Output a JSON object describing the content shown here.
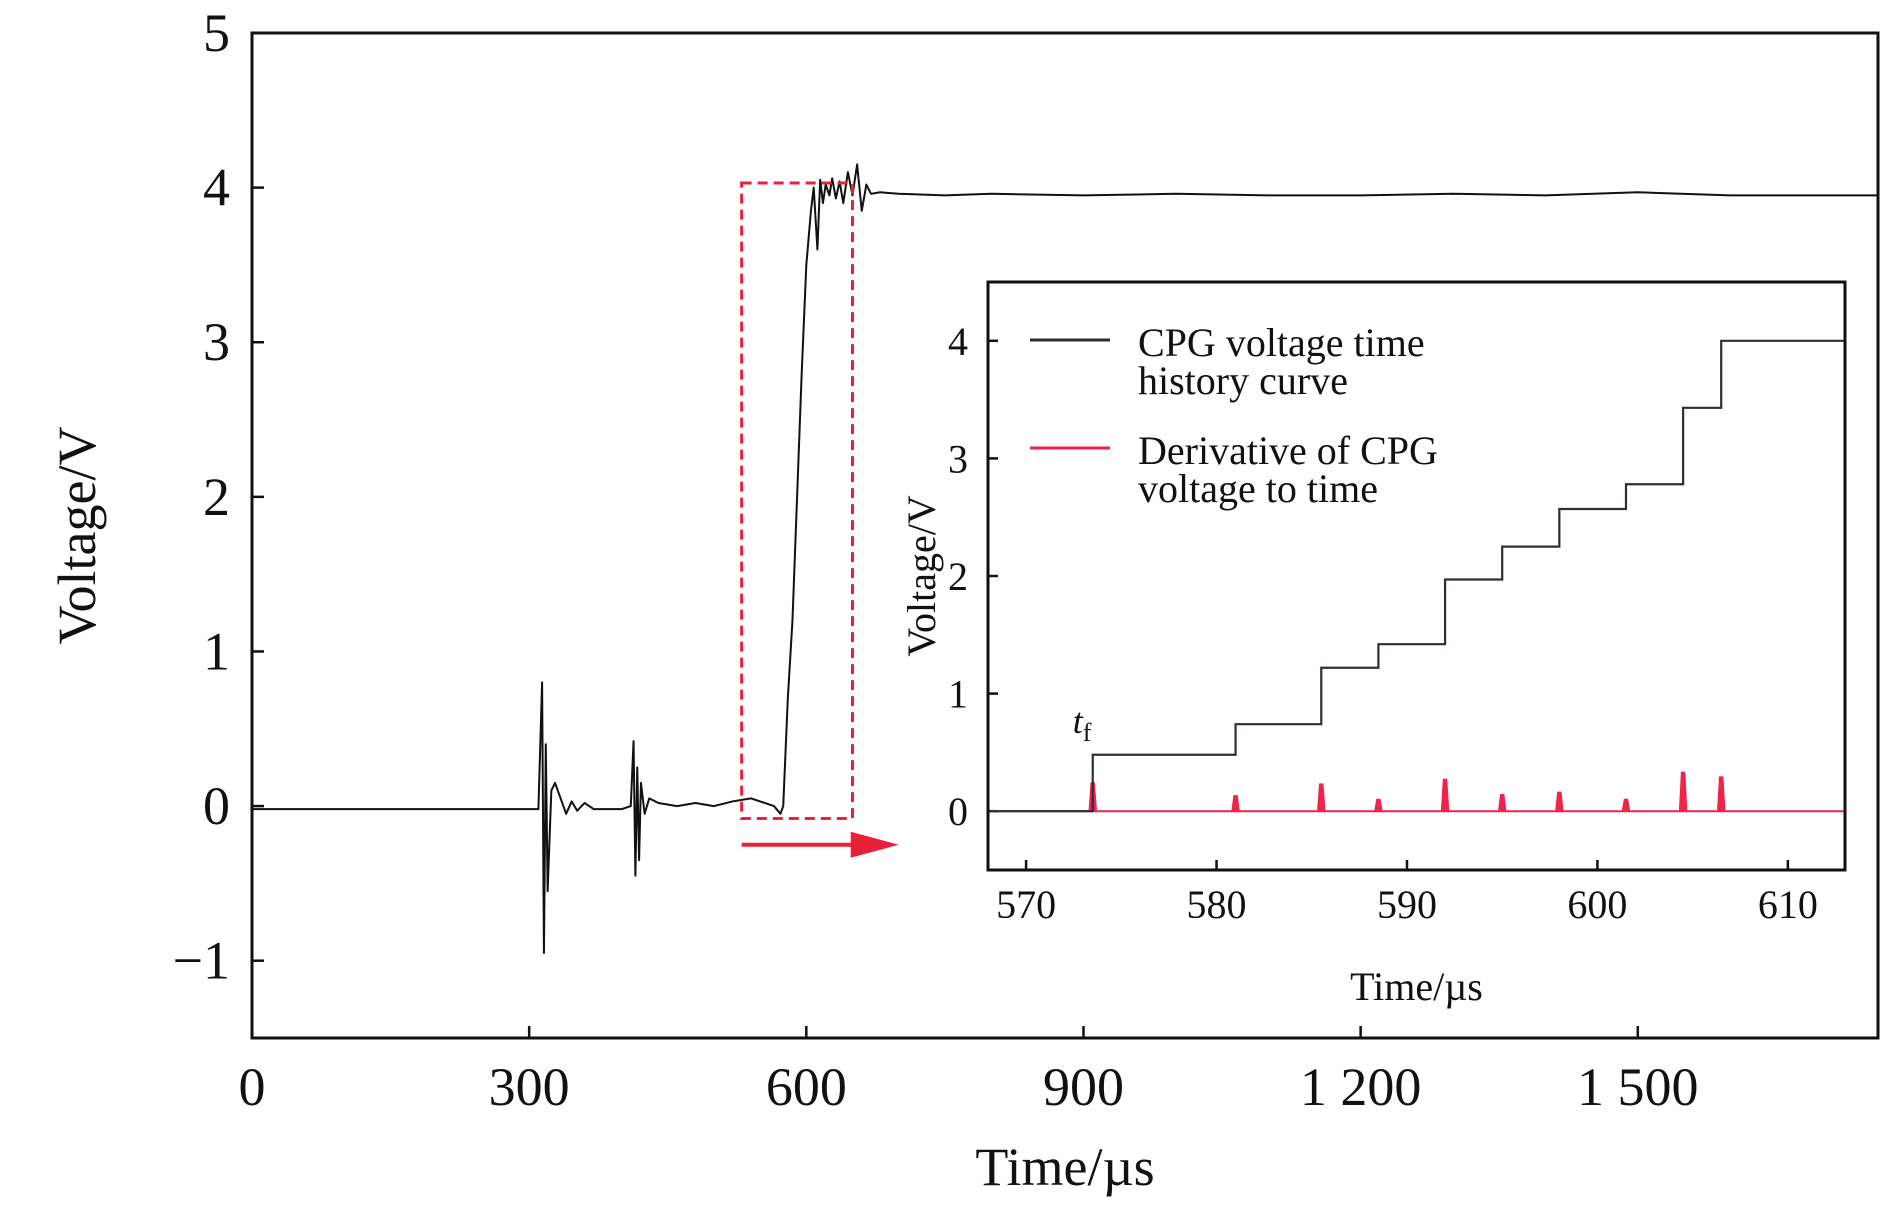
{
  "chart_data": [
    {
      "type": "line",
      "xlabel": "Time/µs",
      "ylabel": "Voltage/V",
      "xlim": [
        0,
        1760
      ],
      "ylim": [
        -1.5,
        5
      ],
      "xticks": [
        0,
        300,
        600,
        900,
        1200,
        1500
      ],
      "xtick_labels": [
        "0",
        "300",
        "600",
        "900",
        "1 200",
        "1 500"
      ],
      "yticks": [
        -1,
        0,
        1,
        2,
        3,
        4,
        5
      ],
      "ytick_labels": [
        "−1",
        "0",
        "1",
        "2",
        "3",
        "4",
        "5"
      ],
      "series": [
        {
          "color": "#111111",
          "x": [
            0,
            100,
            200,
            300,
            310,
            314,
            316,
            318,
            320,
            324,
            328,
            334,
            340,
            346,
            352,
            360,
            370,
            380,
            390,
            400,
            410,
            413,
            415,
            417,
            419,
            421,
            425,
            430,
            440,
            460,
            480,
            500,
            520,
            540,
            555,
            565,
            572,
            575,
            580,
            585,
            590,
            595,
            600,
            605,
            608,
            612,
            615,
            618,
            621,
            625,
            628,
            632,
            636,
            640,
            645,
            650,
            655,
            660,
            665,
            670,
            680,
            700,
            750,
            800,
            900,
            1000,
            1100,
            1200,
            1300,
            1400,
            1500,
            1600,
            1700,
            1760
          ],
          "values": [
            -0.02,
            -0.02,
            -0.02,
            -0.02,
            -0.02,
            0.8,
            -0.95,
            0.4,
            -0.55,
            0.1,
            0.15,
            0.05,
            -0.05,
            0.03,
            -0.03,
            0.02,
            -0.02,
            -0.02,
            -0.02,
            -0.02,
            0.0,
            0.42,
            -0.45,
            0.25,
            -0.35,
            0.15,
            -0.05,
            0.05,
            0.02,
            0.0,
            0.02,
            0.0,
            0.03,
            0.05,
            0.02,
            0.0,
            -0.05,
            0.0,
            0.7,
            1.2,
            2.0,
            2.8,
            3.5,
            3.85,
            4.0,
            3.6,
            4.05,
            3.9,
            4.02,
            3.95,
            4.06,
            3.93,
            4.04,
            3.9,
            4.1,
            3.95,
            4.15,
            3.85,
            4.02,
            3.96,
            3.97,
            3.96,
            3.95,
            3.96,
            3.95,
            3.96,
            3.95,
            3.95,
            3.96,
            3.95,
            3.97,
            3.95,
            3.95,
            3.95
          ]
        }
      ],
      "annotations": [
        {
          "type": "dashed-rectangle",
          "color": "#e8203a",
          "x_range": [
            530,
            650
          ],
          "y_range": [
            -0.08,
            4.03
          ]
        },
        {
          "type": "arrow",
          "color": "#e8203a",
          "from": [
            530,
            -0.25
          ],
          "to": [
            700,
            -0.25
          ]
        }
      ]
    },
    {
      "type": "line",
      "xlabel": "Time/µs",
      "ylabel": "Voltage/V",
      "xlim": [
        568,
        613
      ],
      "ylim": [
        -0.5,
        4.5
      ],
      "xticks": [
        570,
        580,
        590,
        600,
        610
      ],
      "xtick_labels": [
        "570",
        "580",
        "590",
        "600",
        "610"
      ],
      "yticks": [
        0,
        1,
        2,
        3,
        4
      ],
      "ytick_labels": [
        "0",
        "1",
        "2",
        "3",
        "4"
      ],
      "legend_position": "top-left",
      "annotation": {
        "text": "t",
        "subscript": "f",
        "x": 573.5,
        "y": 0.48
      },
      "series": [
        {
          "name": "CPG voltage time history curve",
          "color": "#2b2d42",
          "x": [
            568,
            573.5,
            573.5,
            581,
            581,
            585.5,
            585.5,
            588.5,
            588.5,
            592,
            592,
            595,
            595,
            598,
            598,
            601.5,
            601.5,
            604.5,
            604.5,
            606.5,
            606.5,
            613
          ],
          "values": [
            0,
            0,
            0.48,
            0.48,
            0.74,
            0.74,
            1.22,
            1.22,
            1.42,
            1.42,
            1.97,
            1.97,
            2.25,
            2.25,
            2.57,
            2.57,
            2.78,
            2.78,
            3.43,
            3.43,
            4.0,
            4.0
          ]
        },
        {
          "name": "Derivative of CPG voltage to time",
          "color": "#f0244a",
          "x": [
            568,
            573.5,
            581,
            585.5,
            588.5,
            592,
            595,
            598,
            601.5,
            604.5,
            606.5,
            613
          ],
          "values": [
            0,
            0.24,
            0.13,
            0.23,
            0.1,
            0.27,
            0.14,
            0.16,
            0.1,
            0.33,
            0.29,
            0
          ],
          "spike_x": [
            573.5,
            581,
            585.5,
            588.5,
            592,
            595,
            598,
            601.5,
            604.5,
            606.5
          ],
          "spike_values": [
            0.24,
            0.13,
            0.23,
            0.1,
            0.27,
            0.14,
            0.16,
            0.1,
            0.33,
            0.29
          ]
        }
      ]
    }
  ]
}
